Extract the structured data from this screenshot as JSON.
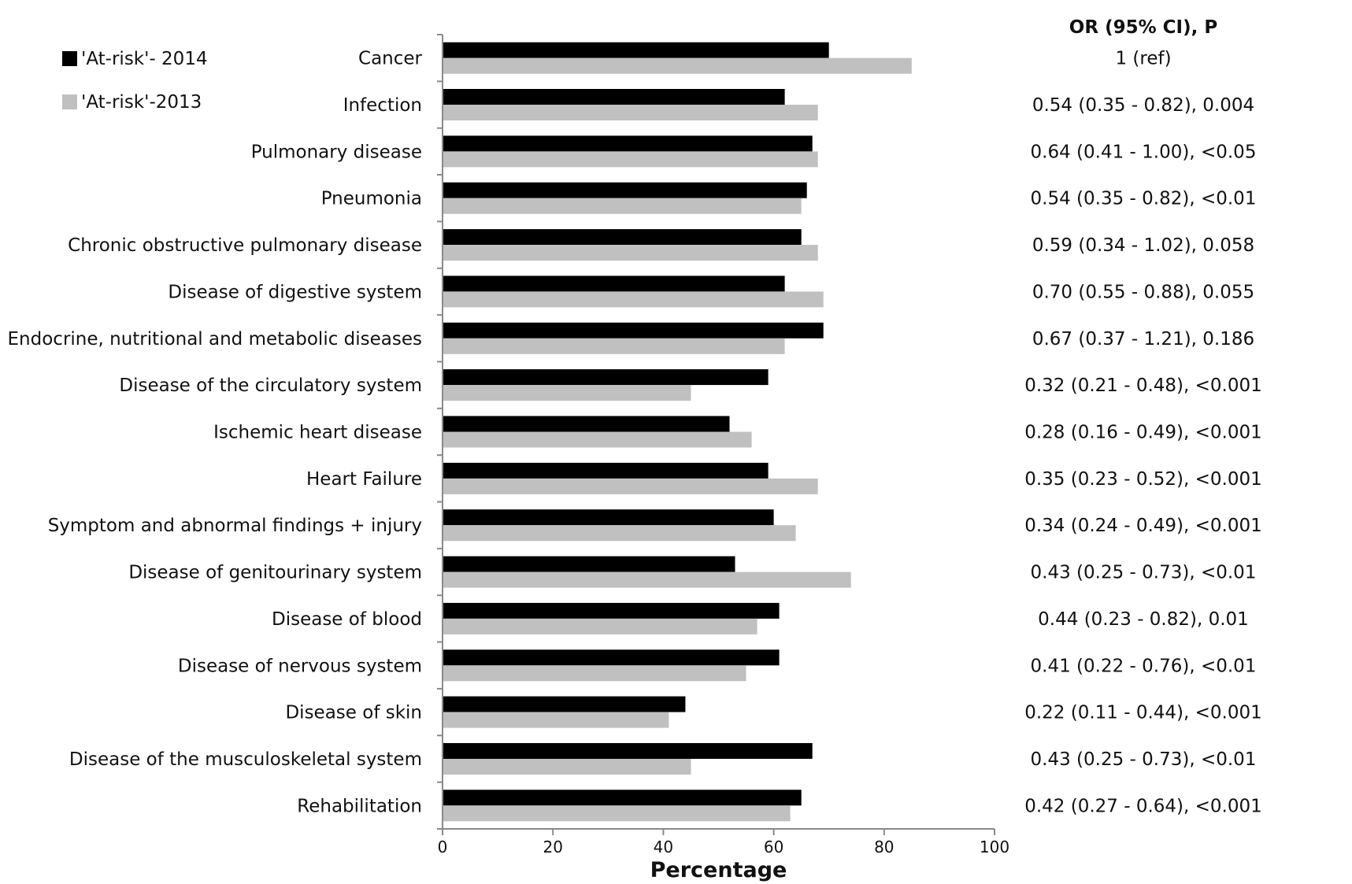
{
  "chart_data": {
    "type": "bar",
    "orientation": "horizontal",
    "xlabel": "Percentage",
    "xlim": [
      0,
      100
    ],
    "xticks": [
      0,
      20,
      40,
      60,
      80,
      100
    ],
    "legend_placement": "top-left",
    "grid": false,
    "categories": [
      "Cancer",
      "Infection",
      "Pulmonary disease",
      "Pneumonia",
      "Chronic obstructive pulmonary disease",
      "Disease of digestive system",
      "Endocrine, nutritional and metabolic diseases",
      "Disease of the circulatory system",
      "Ischemic heart disease",
      "Heart Failure",
      "Symptom and abnormal findings + injury",
      "Disease of genitourinary system",
      "Disease of blood",
      "Disease of nervous system",
      "Disease of skin",
      "Disease of the musculoskeletal system",
      "Rehabilitation"
    ],
    "series": [
      {
        "name": "'At-risk'- 2014",
        "color": "#000000",
        "values": [
          70,
          62,
          67,
          66,
          65,
          62,
          69,
          59,
          52,
          59,
          60,
          53,
          61,
          61,
          44,
          67,
          65
        ]
      },
      {
        "name": "'At-risk'-2013",
        "color": "#c0c0c0",
        "values": [
          85,
          68,
          68,
          65,
          68,
          69,
          62,
          45,
          56,
          68,
          64,
          74,
          57,
          55,
          41,
          45,
          63
        ]
      }
    ],
    "or_header": "OR (95% CI), P",
    "or_values": [
      "1 (ref)",
      "0.54 (0.35 - 0.82),  0.004",
      "0.64 (0.41 - 1.00),  <0.05",
      "0.54 (0.35 - 0.82),  <0.01",
      "0.59 (0.34 - 1.02),  0.058",
      "0.70 (0.55 - 0.88),  0.055",
      "0.67 (0.37 - 1.21),  0.186",
      "0.32 (0.21 - 0.48),  <0.001",
      "0.28 (0.16 - 0.49),  <0.001",
      "0.35 (0.23 - 0.52),  <0.001",
      "0.34 (0.24 - 0.49), <0.001",
      "0.43 (0.25 - 0.73),  <0.01",
      "0.44 (0.23 - 0.82),  0.01",
      "0.41 (0.22 - 0.76),  <0.01",
      "0.22 (0.11 - 0.44), <0.001",
      "0.43 (0.25 - 0.73),  <0.01",
      "0.42 (0.27 - 0.64),  <0.001"
    ]
  }
}
